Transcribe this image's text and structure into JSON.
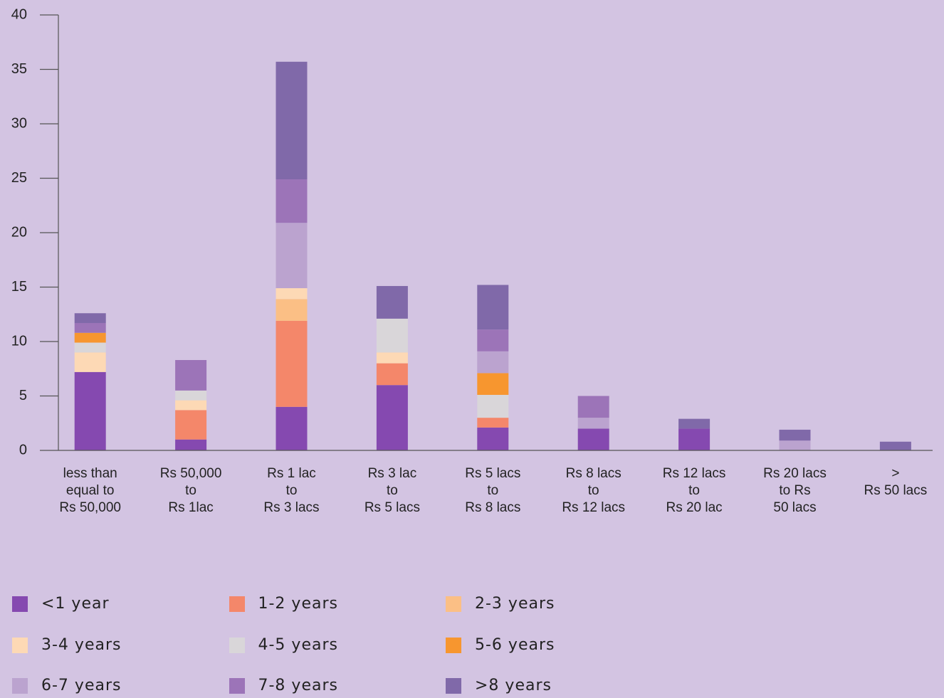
{
  "chart_data": {
    "type": "stacked_bar",
    "categories": [
      "less than\nequal to\nRs 50,000",
      "Rs 50,000\nto\nRs 1lac",
      "Rs 1 lac\nto\nRs 3 lacs",
      "Rs 3 lac\nto\nRs 5 lacs",
      "Rs 5 lacs\nto\nRs 8 lacs",
      "Rs 8 lacs\nto\nRs 12 lacs",
      "Rs 12 lacs\nto\nRs 20 lac",
      "Rs 20 lacs\nto Rs\n50 lacs",
      ">\nRs 50 lacs"
    ],
    "series": [
      {
        "name": "<1 year",
        "color": "#8549b0",
        "values": [
          7.2,
          1.0,
          4.0,
          6.0,
          2.1,
          2.0,
          2.0,
          0,
          0
        ]
      },
      {
        "name": "1-2 years",
        "color": "#f4876a",
        "values": [
          0,
          2.7,
          7.9,
          2.0,
          0.9,
          0,
          0,
          0,
          0
        ]
      },
      {
        "name": "2-3 years",
        "color": "#fbbf85",
        "values": [
          0,
          0,
          2.0,
          0,
          0,
          0,
          0,
          0,
          0
        ]
      },
      {
        "name": "3-4 years",
        "color": "#fdd9b5",
        "values": [
          1.8,
          0.9,
          1.0,
          1.0,
          0,
          0,
          0,
          0,
          0
        ]
      },
      {
        "name": "4-5 years",
        "color": "#d9d6d9",
        "values": [
          0.9,
          0.9,
          0,
          3.1,
          2.1,
          0,
          0,
          0,
          0
        ]
      },
      {
        "name": "5-6 years",
        "color": "#f7962f",
        "values": [
          0.9,
          0,
          0,
          0,
          2.0,
          0,
          0,
          0,
          0
        ]
      },
      {
        "name": "6-7 years",
        "color": "#bba3cf",
        "values": [
          0,
          0,
          6.0,
          0,
          2.0,
          1.0,
          0,
          0.9,
          0
        ]
      },
      {
        "name": "7-8 years",
        "color": "#9c74b8",
        "values": [
          0.9,
          2.8,
          4.0,
          0,
          2.0,
          2.0,
          0,
          0,
          0
        ]
      },
      {
        "name": ">8 years",
        "color": "#8069a9",
        "values": [
          0.9,
          0,
          10.8,
          3.0,
          4.1,
          0,
          0.9,
          1.0,
          0.8
        ]
      }
    ],
    "ylim": [
      0,
      40
    ],
    "yticks": [
      0,
      5,
      10,
      15,
      20,
      25,
      30,
      35,
      40
    ]
  }
}
